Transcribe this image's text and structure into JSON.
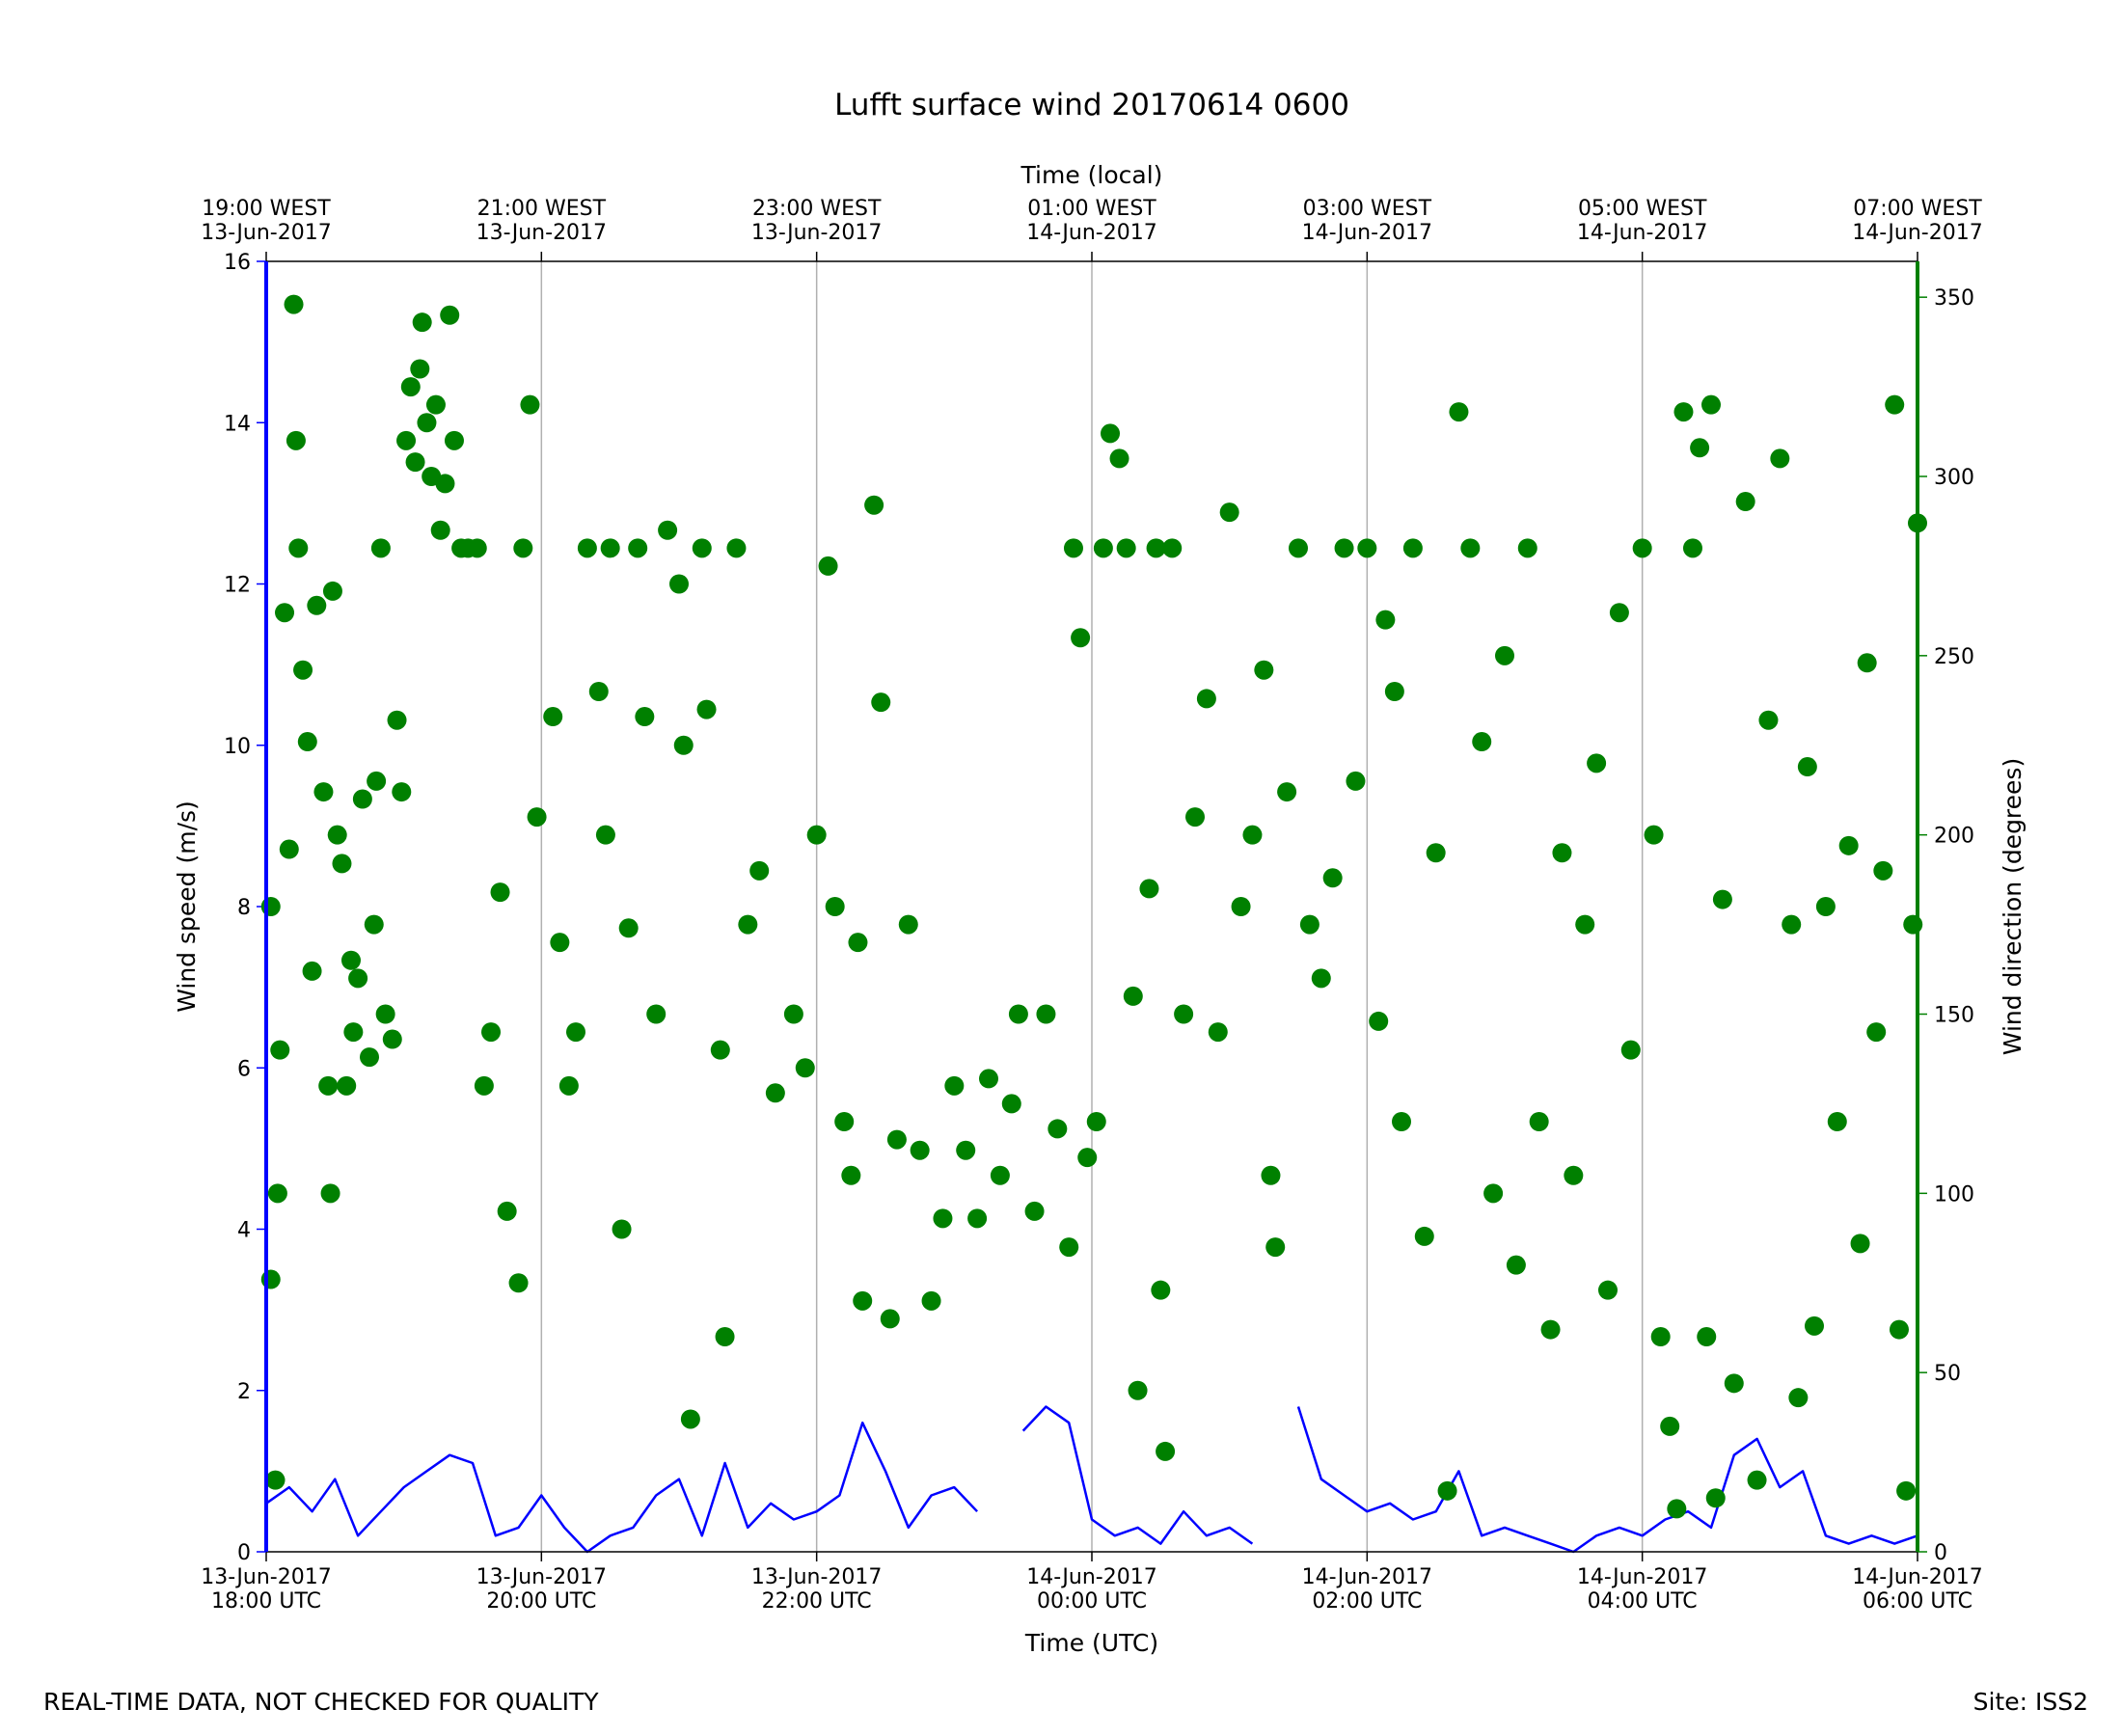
{
  "chart_data": {
    "type": "line",
    "title": "Lufft surface wind 20170614 0600",
    "xlabel": "Time (UTC)",
    "x2label": "Time (local)",
    "ylabel": "Wind speed (m/s)",
    "y2label": "Wind direction (degrees)",
    "grid": "x",
    "xlim": [
      "2017-06-13 18:00",
      "2017-06-14 06:00"
    ],
    "xticks": [
      {
        "value": "2017-06-13 18:00",
        "label": [
          "13-Jun-2017",
          "18:00 UTC"
        ]
      },
      {
        "value": "2017-06-13 20:00",
        "label": [
          "13-Jun-2017",
          "20:00 UTC"
        ]
      },
      {
        "value": "2017-06-13 22:00",
        "label": [
          "13-Jun-2017",
          "22:00 UTC"
        ]
      },
      {
        "value": "2017-06-14 00:00",
        "label": [
          "14-Jun-2017",
          "00:00 UTC"
        ]
      },
      {
        "value": "2017-06-14 02:00",
        "label": [
          "14-Jun-2017",
          "02:00 UTC"
        ]
      },
      {
        "value": "2017-06-14 04:00",
        "label": [
          "14-Jun-2017",
          "04:00 UTC"
        ]
      },
      {
        "value": "2017-06-14 06:00",
        "label": [
          "14-Jun-2017",
          "06:00 UTC"
        ]
      }
    ],
    "x2ticks": [
      {
        "value": "2017-06-13 18:00",
        "label": [
          "19:00 WEST",
          "13-Jun-2017"
        ]
      },
      {
        "value": "2017-06-13 20:00",
        "label": [
          "21:00 WEST",
          "13-Jun-2017"
        ]
      },
      {
        "value": "2017-06-13 22:00",
        "label": [
          "23:00 WEST",
          "13-Jun-2017"
        ]
      },
      {
        "value": "2017-06-14 00:00",
        "label": [
          "01:00 WEST",
          "14-Jun-2017"
        ]
      },
      {
        "value": "2017-06-14 02:00",
        "label": [
          "03:00 WEST",
          "14-Jun-2017"
        ]
      },
      {
        "value": "2017-06-14 04:00",
        "label": [
          "05:00 WEST",
          "14-Jun-2017"
        ]
      },
      {
        "value": "2017-06-14 06:00",
        "label": [
          "07:00 WEST",
          "14-Jun-2017"
        ]
      }
    ],
    "ylim": [
      0,
      16
    ],
    "yticks": [
      0,
      2,
      4,
      6,
      8,
      10,
      12,
      14,
      16
    ],
    "y2lim": [
      0,
      360
    ],
    "y2ticks": [
      0,
      50,
      100,
      150,
      200,
      250,
      300,
      350
    ],
    "series": [
      {
        "type": "line",
        "color": "#0000ff",
        "axis": "y",
        "x": [
          "2017-06-13 18:00",
          "2017-06-13 18:10",
          "2017-06-13 18:20",
          "2017-06-13 18:30",
          "2017-06-13 18:40",
          "2017-06-13 18:50",
          "2017-06-13 19:00",
          "2017-06-13 19:10",
          "2017-06-13 19:20",
          "2017-06-13 19:30",
          "2017-06-13 19:40",
          "2017-06-13 19:50",
          "2017-06-13 20:00",
          "2017-06-13 20:10",
          "2017-06-13 20:20",
          "2017-06-13 20:30",
          "2017-06-13 20:40",
          "2017-06-13 20:50",
          "2017-06-13 21:00",
          "2017-06-13 21:10",
          "2017-06-13 21:20",
          "2017-06-13 21:30",
          "2017-06-13 21:40",
          "2017-06-13 21:50",
          "2017-06-13 22:00",
          "2017-06-13 22:10",
          "2017-06-13 22:20",
          "2017-06-13 22:30",
          "2017-06-13 22:40",
          "2017-06-13 22:50",
          "2017-06-13 23:00",
          "2017-06-13 23:10",
          "2017-06-13 23:20",
          "2017-06-13 23:30",
          "2017-06-13 23:40",
          "2017-06-13 23:50",
          "2017-06-14 00:00",
          "2017-06-14 00:10",
          "2017-06-14 00:20",
          "2017-06-14 00:30",
          "2017-06-14 00:40",
          "2017-06-14 00:50",
          "2017-06-14 01:00",
          "2017-06-14 01:10",
          "2017-06-14 01:20",
          "2017-06-14 01:30",
          "2017-06-14 01:40",
          "2017-06-14 01:50",
          "2017-06-14 02:00",
          "2017-06-14 02:10",
          "2017-06-14 02:20",
          "2017-06-14 02:30",
          "2017-06-14 02:40",
          "2017-06-14 02:50",
          "2017-06-14 03:00",
          "2017-06-14 03:10",
          "2017-06-14 03:20",
          "2017-06-14 03:30",
          "2017-06-14 03:40",
          "2017-06-14 03:50",
          "2017-06-14 04:00",
          "2017-06-14 04:10",
          "2017-06-14 04:20",
          "2017-06-14 04:30",
          "2017-06-14 04:40",
          "2017-06-14 04:50",
          "2017-06-14 05:00",
          "2017-06-14 05:10",
          "2017-06-14 05:20",
          "2017-06-14 05:30",
          "2017-06-14 05:40",
          "2017-06-14 05:50",
          "2017-06-14 06:00"
        ],
        "values": [
          0.6,
          0.8,
          0.5,
          0.9,
          0.2,
          0.5,
          0.8,
          1.0,
          1.2,
          1.1,
          0.2,
          0.3,
          0.7,
          0.3,
          0.0,
          0.2,
          0.3,
          0.7,
          0.9,
          0.2,
          1.1,
          0.3,
          0.6,
          0.4,
          0.5,
          0.7,
          1.6,
          1.0,
          0.3,
          0.7,
          0.8,
          0.5,
          null,
          1.5,
          1.8,
          1.6,
          0.4,
          0.2,
          0.3,
          0.1,
          0.5,
          0.2,
          0.3,
          0.1,
          null,
          1.8,
          0.9,
          0.7,
          0.5,
          0.6,
          0.4,
          0.5,
          1.0,
          0.2,
          0.3,
          0.2,
          0.1,
          0.0,
          0.2,
          0.3,
          0.2,
          0.4,
          0.5,
          0.3,
          1.2,
          1.4,
          0.8,
          1.0,
          0.2,
          0.1,
          0.2,
          0.1,
          0.2
        ]
      },
      {
        "type": "scatter",
        "color": "#008000",
        "axis": "y2",
        "x": [
          "2017-06-13 18:02",
          "2017-06-13 18:02",
          "2017-06-13 18:04",
          "2017-06-13 18:05",
          "2017-06-13 18:06",
          "2017-06-13 18:08",
          "2017-06-13 18:10",
          "2017-06-13 18:12",
          "2017-06-13 18:13",
          "2017-06-13 18:14",
          "2017-06-13 18:16",
          "2017-06-13 18:18",
          "2017-06-13 18:20",
          "2017-06-13 18:22",
          "2017-06-13 18:25",
          "2017-06-13 18:27",
          "2017-06-13 18:28",
          "2017-06-13 18:29",
          "2017-06-13 18:31",
          "2017-06-13 18:33",
          "2017-06-13 18:35",
          "2017-06-13 18:37",
          "2017-06-13 18:38",
          "2017-06-13 18:40",
          "2017-06-13 18:42",
          "2017-06-13 18:45",
          "2017-06-13 18:47",
          "2017-06-13 18:48",
          "2017-06-13 18:50",
          "2017-06-13 18:52",
          "2017-06-13 18:55",
          "2017-06-13 18:57",
          "2017-06-13 18:59",
          "2017-06-13 19:01",
          "2017-06-13 19:03",
          "2017-06-13 19:05",
          "2017-06-13 19:07",
          "2017-06-13 19:08",
          "2017-06-13 19:10",
          "2017-06-13 19:12",
          "2017-06-13 19:14",
          "2017-06-13 19:16",
          "2017-06-13 19:18",
          "2017-06-13 19:20",
          "2017-06-13 19:22",
          "2017-06-13 19:25",
          "2017-06-13 19:28",
          "2017-06-13 19:32",
          "2017-06-13 19:35",
          "2017-06-13 19:38",
          "2017-06-13 19:42",
          "2017-06-13 19:45",
          "2017-06-13 19:50",
          "2017-06-13 19:52",
          "2017-06-13 19:55",
          "2017-06-13 19:58",
          "2017-06-13 20:05",
          "2017-06-13 20:08",
          "2017-06-13 20:12",
          "2017-06-13 20:15",
          "2017-06-13 20:20",
          "2017-06-13 20:25",
          "2017-06-13 20:28",
          "2017-06-13 20:30",
          "2017-06-13 20:35",
          "2017-06-13 20:38",
          "2017-06-13 20:42",
          "2017-06-13 20:45",
          "2017-06-13 20:50",
          "2017-06-13 20:55",
          "2017-06-13 21:00",
          "2017-06-13 21:02",
          "2017-06-13 21:05",
          "2017-06-13 21:10",
          "2017-06-13 21:12",
          "2017-06-13 21:18",
          "2017-06-13 21:20",
          "2017-06-13 21:25",
          "2017-06-13 21:30",
          "2017-06-13 21:35",
          "2017-06-13 21:42",
          "2017-06-13 21:50",
          "2017-06-13 21:55",
          "2017-06-13 22:00",
          "2017-06-13 22:05",
          "2017-06-13 22:08",
          "2017-06-13 22:12",
          "2017-06-13 22:15",
          "2017-06-13 22:18",
          "2017-06-13 22:20",
          "2017-06-13 22:25",
          "2017-06-13 22:28",
          "2017-06-13 22:32",
          "2017-06-13 22:35",
          "2017-06-13 22:40",
          "2017-06-13 22:45",
          "2017-06-13 22:50",
          "2017-06-13 22:55",
          "2017-06-13 23:00",
          "2017-06-13 23:05",
          "2017-06-13 23:10",
          "2017-06-13 23:15",
          "2017-06-13 23:20",
          "2017-06-13 23:25",
          "2017-06-13 23:28",
          "2017-06-13 23:35",
          "2017-06-13 23:40",
          "2017-06-13 23:45",
          "2017-06-13 23:50",
          "2017-06-13 23:52",
          "2017-06-13 23:55",
          "2017-06-13 23:58",
          "2017-06-14 00:02",
          "2017-06-14 00:05",
          "2017-06-14 00:08",
          "2017-06-14 00:12",
          "2017-06-14 00:15",
          "2017-06-14 00:18",
          "2017-06-14 00:20",
          "2017-06-14 00:25",
          "2017-06-14 00:28",
          "2017-06-14 00:30",
          "2017-06-14 00:32",
          "2017-06-14 00:35",
          "2017-06-14 00:40",
          "2017-06-14 00:45",
          "2017-06-14 00:50",
          "2017-06-14 00:55",
          "2017-06-14 01:00",
          "2017-06-14 01:05",
          "2017-06-14 01:10",
          "2017-06-14 01:15",
          "2017-06-14 01:18",
          "2017-06-14 01:20",
          "2017-06-14 01:25",
          "2017-06-14 01:30",
          "2017-06-14 01:35",
          "2017-06-14 01:40",
          "2017-06-14 01:45",
          "2017-06-14 01:50",
          "2017-06-14 01:55",
          "2017-06-14 02:00",
          "2017-06-14 02:05",
          "2017-06-14 02:08",
          "2017-06-14 02:12",
          "2017-06-14 02:15",
          "2017-06-14 02:20",
          "2017-06-14 02:25",
          "2017-06-14 02:30",
          "2017-06-14 02:35",
          "2017-06-14 02:40",
          "2017-06-14 02:45",
          "2017-06-14 02:50",
          "2017-06-14 02:55",
          "2017-06-14 03:00",
          "2017-06-14 03:05",
          "2017-06-14 03:10",
          "2017-06-14 03:15",
          "2017-06-14 03:20",
          "2017-06-14 03:25",
          "2017-06-14 03:30",
          "2017-06-14 03:35",
          "2017-06-14 03:40",
          "2017-06-14 03:45",
          "2017-06-14 03:50",
          "2017-06-14 03:55",
          "2017-06-14 04:00",
          "2017-06-14 04:05",
          "2017-06-14 04:08",
          "2017-06-14 04:12",
          "2017-06-14 04:15",
          "2017-06-14 04:18",
          "2017-06-14 04:22",
          "2017-06-14 04:25",
          "2017-06-14 04:28",
          "2017-06-14 04:30",
          "2017-06-14 04:32",
          "2017-06-14 04:35",
          "2017-06-14 04:40",
          "2017-06-14 04:45",
          "2017-06-14 04:50",
          "2017-06-14 04:55",
          "2017-06-14 05:00",
          "2017-06-14 05:05",
          "2017-06-14 05:08",
          "2017-06-14 05:12",
          "2017-06-14 05:15",
          "2017-06-14 05:20",
          "2017-06-14 05:25",
          "2017-06-14 05:30",
          "2017-06-14 05:35",
          "2017-06-14 05:38",
          "2017-06-14 05:42",
          "2017-06-14 05:45",
          "2017-06-14 05:50",
          "2017-06-14 05:52",
          "2017-06-14 05:55",
          "2017-06-14 05:58",
          "2017-06-14 06:00"
        ],
        "values": [
          76,
          180,
          20,
          100,
          140,
          262,
          196,
          348,
          310,
          280,
          246,
          226,
          162,
          264,
          212,
          130,
          100,
          268,
          200,
          192,
          130,
          165,
          145,
          160,
          210,
          138,
          175,
          215,
          280,
          150,
          143,
          232,
          212,
          310,
          325,
          304,
          330,
          343,
          315,
          300,
          320,
          285,
          298,
          345,
          310,
          280,
          280,
          280,
          130,
          145,
          184,
          95,
          75,
          280,
          320,
          205,
          233,
          170,
          130,
          145,
          280,
          240,
          200,
          280,
          90,
          174,
          280,
          233,
          150,
          285,
          270,
          225,
          37,
          280,
          235,
          140,
          60,
          280,
          175,
          190,
          128,
          150,
          135,
          200,
          275,
          180,
          120,
          105,
          170,
          70,
          292,
          237,
          65,
          115,
          175,
          112,
          70,
          93,
          130,
          112,
          93,
          132,
          105,
          125,
          150,
          95,
          150,
          118,
          85,
          280,
          255,
          110,
          120,
          280,
          312,
          305,
          280,
          155,
          45,
          185,
          280,
          73,
          28,
          280,
          150,
          205,
          238,
          145,
          290,
          180,
          200,
          246,
          105,
          85,
          212,
          280,
          175,
          160,
          188,
          280,
          215,
          280,
          148,
          260,
          240,
          120,
          280,
          88,
          195,
          17,
          318,
          280,
          226,
          100,
          250,
          80,
          280,
          120,
          62,
          195,
          105,
          175,
          220,
          73,
          262,
          140,
          280,
          200,
          60,
          35,
          12,
          318,
          280,
          308,
          60,
          320,
          15,
          182,
          47,
          293,
          20,
          232,
          305,
          175,
          43,
          219,
          63,
          180,
          120,
          197,
          86,
          248,
          145,
          190,
          320,
          62,
          17,
          175,
          287
        ]
      }
    ]
  },
  "footer": {
    "left": "REAL-TIME DATA, NOT CHECKED FOR QUALITY",
    "right": "Site: ISS2"
  }
}
